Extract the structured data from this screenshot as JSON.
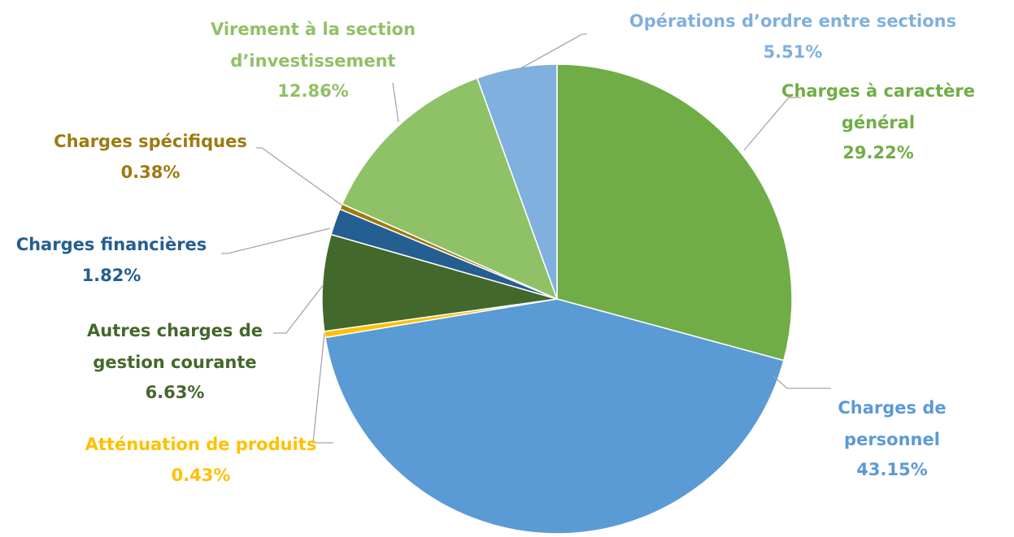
{
  "chart_data": {
    "type": "pie",
    "categories": [
      "Charges à caractère général",
      "Charges de personnel",
      "Atténuation de produits",
      "Autres charges de gestion courante",
      "Charges financières",
      "Charges spécifiques",
      "Virement à la section d’investissement",
      "Opérations d’ordre entre sections"
    ],
    "values": [
      29.22,
      43.15,
      0.43,
      6.63,
      1.82,
      0.38,
      12.86,
      5.51
    ],
    "value_labels": [
      "29.22%",
      "43.15%",
      "0.43%",
      "6.63%",
      "1.82%",
      "0.38%",
      "12.86%",
      "5.51%"
    ],
    "colors": [
      "#70ad47",
      "#5b9bd5",
      "#ffc000",
      "#43682b",
      "#255e91",
      "#9e7a10",
      "#8fc167",
      "#7fb0de"
    ]
  }
}
